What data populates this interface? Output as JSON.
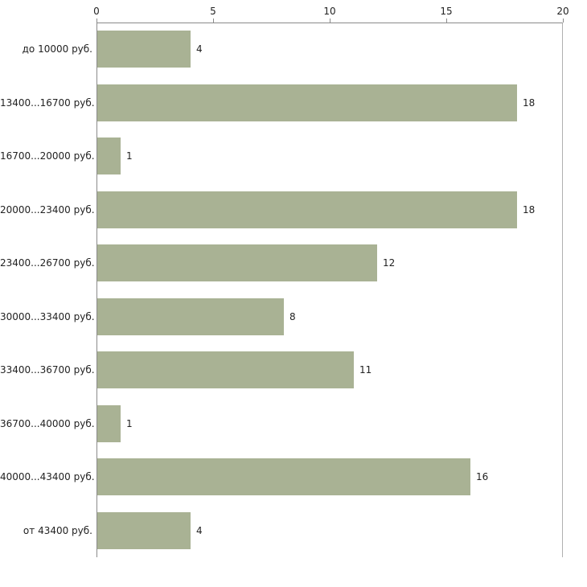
{
  "chart_data": {
    "type": "bar",
    "orientation": "horizontal",
    "title": "",
    "xlabel": "",
    "ylabel": "",
    "categories": [
      "до 10000 руб.",
      "13400...16700 руб.",
      "16700...20000 руб.",
      "20000...23400 руб.",
      "23400...26700 руб.",
      "30000...33400 руб.",
      "33400...36700 руб.",
      "36700...40000 руб.",
      "40000...43400 руб.",
      "от 43400 руб."
    ],
    "values": [
      4,
      18,
      1,
      18,
      12,
      8,
      11,
      1,
      16,
      4
    ],
    "x_ticks": [
      0,
      5,
      10,
      15,
      20
    ],
    "xlim": [
      0,
      20
    ],
    "bar_color": "#a9b294",
    "axis_color": "#8a8a8a",
    "text_color": "#222222",
    "grid": "off",
    "legend": "none"
  }
}
